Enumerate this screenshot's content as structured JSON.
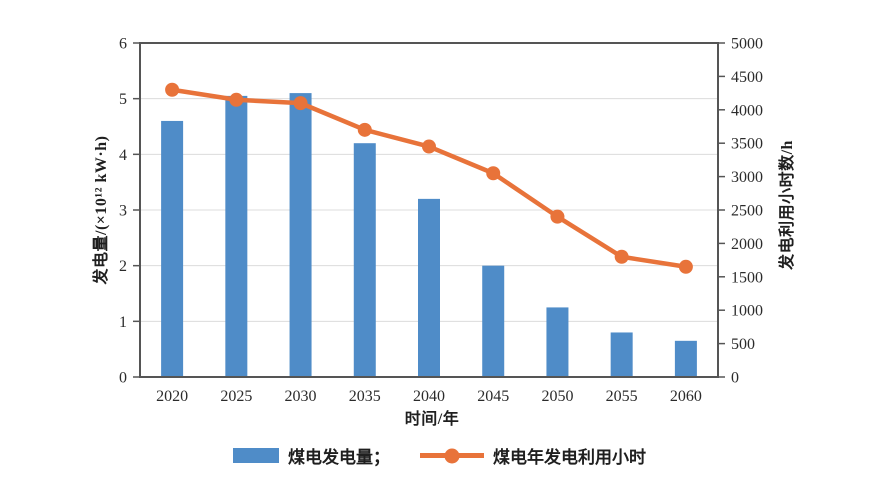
{
  "chart_data": {
    "type": "bar+line combo, dual y-axis",
    "categories": [
      "2020",
      "2025",
      "2030",
      "2035",
      "2040",
      "2045",
      "2050",
      "2055",
      "2060"
    ],
    "series": [
      {
        "name": "煤电发电量",
        "type": "bar",
        "axis": "left",
        "color": "#4F8CC8",
        "values": [
          4.6,
          5.05,
          5.1,
          4.2,
          3.2,
          2.0,
          1.25,
          0.8,
          0.65
        ]
      },
      {
        "name": "煤电年发电利用小时",
        "type": "line",
        "axis": "right",
        "color": "#E8733A",
        "values": [
          4300,
          4150,
          4100,
          3700,
          3450,
          3050,
          2400,
          1800,
          1650
        ]
      }
    ],
    "xlabel": "时间/年",
    "ylabel_left": "发电量/(×10¹² kW·h)",
    "ylabel_right": "发电利用小时数/h",
    "y_left": {
      "min": 0,
      "max": 6,
      "tick_step": 1
    },
    "y_right": {
      "min": 0,
      "max": 5000,
      "tick_step": 500
    },
    "grid": "horizontal gridlines at left-axis integers 1-5, light gray, plot fully boxed",
    "legend": {
      "position": "bottom-center",
      "items": [
        {
          "label": "煤电发电量；",
          "swatch": "bar"
        },
        {
          "label": "煤电年发电利用小时",
          "swatch": "line-marker"
        }
      ]
    }
  },
  "colors": {
    "bar": "#4F8CC8",
    "line": "#E8733A",
    "gridline": "#dcdcdc",
    "axis": "#555555",
    "text": "#2b2b2b",
    "background": "#ffffff"
  }
}
